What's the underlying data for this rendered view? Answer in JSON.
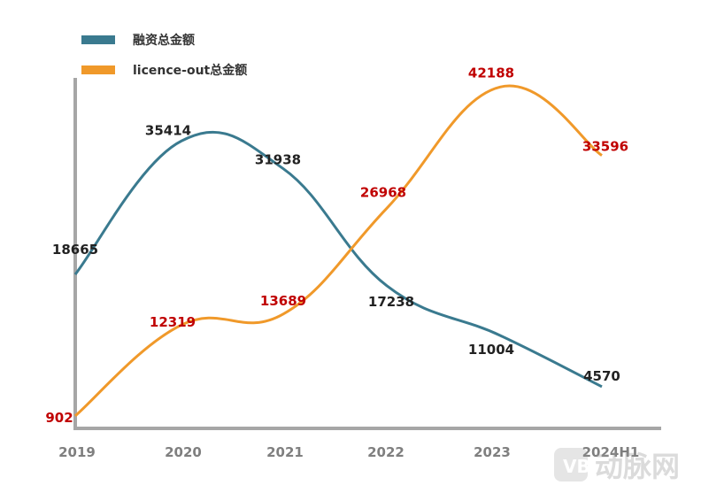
{
  "chart_data": {
    "type": "line",
    "smooth": true,
    "categories": [
      "2019",
      "2020",
      "2021",
      "2022",
      "2023",
      "2024H1"
    ],
    "series": [
      {
        "name": "融资总金额",
        "color": "#3a7a8f",
        "label_color": "#222222",
        "values": [
          18665,
          35414,
          31938,
          17238,
          11004,
          4570
        ]
      },
      {
        "name": "licence-out总金额",
        "color": "#f0992a",
        "label_color": "#c00000",
        "values": [
          902,
          12319,
          13689,
          26968,
          42188,
          33596
        ]
      }
    ],
    "legend_position": "top-left",
    "grid": false,
    "axis_color": "#a6a6a6"
  },
  "watermark": "动脉网"
}
